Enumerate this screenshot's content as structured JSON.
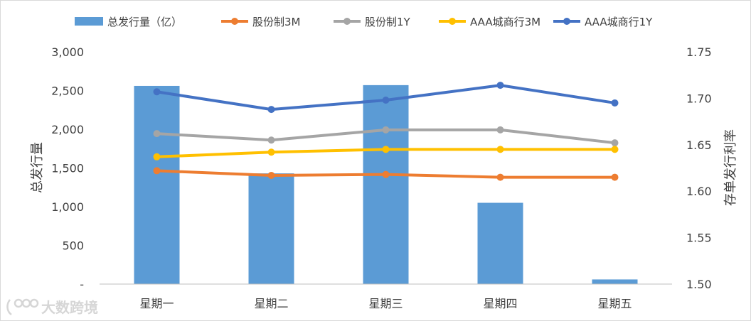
{
  "chart_data": {
    "type": "bar+line",
    "categories": [
      "星期一",
      "星期二",
      "星期三",
      "星期四",
      "星期五"
    ],
    "bar_series": {
      "name": "总发行量（亿）",
      "axis": "left",
      "color": "#5b9bd5",
      "values": [
        2560,
        1430,
        2570,
        1050,
        60
      ]
    },
    "line_series": [
      {
        "name": "股份制3M",
        "axis": "right",
        "color": "#ed7d31",
        "values": [
          1.622,
          1.617,
          1.618,
          1.615,
          1.615
        ]
      },
      {
        "name": "股份制1Y",
        "axis": "right",
        "color": "#a5a5a5",
        "values": [
          1.662,
          1.655,
          1.666,
          1.666,
          1.652
        ]
      },
      {
        "name": "AAA城商行3M",
        "axis": "right",
        "color": "#ffc000",
        "values": [
          1.637,
          1.642,
          1.645,
          1.645,
          1.645
        ]
      },
      {
        "name": "AAA城商行1Y",
        "axis": "right",
        "color": "#4472c4",
        "values": [
          1.707,
          1.688,
          1.698,
          1.714,
          1.695
        ]
      }
    ],
    "left_axis": {
      "label": "总发行量",
      "ylim": [
        0,
        3000
      ],
      "tick_values": [
        0,
        500,
        1000,
        1500,
        2000,
        2500,
        3000
      ],
      "tick_labels": [
        "-",
        "500",
        "1,000",
        "1,500",
        "2,000",
        "2,500",
        "3,000"
      ]
    },
    "right_axis": {
      "label": "存单发行利率",
      "ylim": [
        1.5,
        1.75
      ],
      "tick_values": [
        1.5,
        1.55,
        1.6,
        1.65,
        1.7,
        1.75
      ],
      "tick_labels": [
        "1.50",
        "1.55",
        "1.60",
        "1.65",
        "1.70",
        "1.75"
      ]
    },
    "legend_position": "top",
    "grid": false
  },
  "watermark_text": "大数跨境"
}
